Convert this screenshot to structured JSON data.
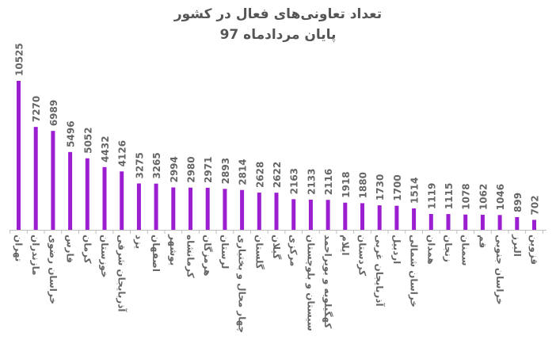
{
  "chart_data": {
    "type": "bar",
    "title": "تعداد تعاونی‌های فعال در کشور",
    "subtitle": "پایان مردادماه 97",
    "categories": [
      "تهران",
      "مازندران",
      "خراسان رضوی",
      "فارس",
      "کرمان",
      "خوزستان",
      "آذربایجان شرقی",
      "یزد",
      "اصفهان",
      "بوشهر",
      "کرمانشاه",
      "هرمزگان",
      "لرستان",
      "چهار محال و بختیاری",
      "گلستان",
      "گیلان",
      "مرکزی",
      "سیستان و بلوچستان",
      "کهگیلویه و بویراحمد",
      "ایلام",
      "کردستان",
      "آذربایجان غربی",
      "اردبیل",
      "خراسان شمالی",
      "همدان",
      "زنجان",
      "سمنان",
      "قم",
      "خراسان جنوبی",
      "البرز",
      "قزوین"
    ],
    "values": [
      10525,
      7270,
      6989,
      5496,
      5052,
      4432,
      4126,
      3275,
      3265,
      2994,
      2980,
      2971,
      2893,
      2814,
      2628,
      2622,
      2163,
      2133,
      2116,
      1918,
      1880,
      1730,
      1700,
      1514,
      1119,
      1115,
      1078,
      1062,
      1046,
      899,
      702
    ],
    "ylim": [
      0,
      11000
    ],
    "grid": false,
    "legend": "none",
    "bar_color": "#9b1fd1",
    "label_color": "#666666",
    "axis_color": "#bfbfbf"
  }
}
